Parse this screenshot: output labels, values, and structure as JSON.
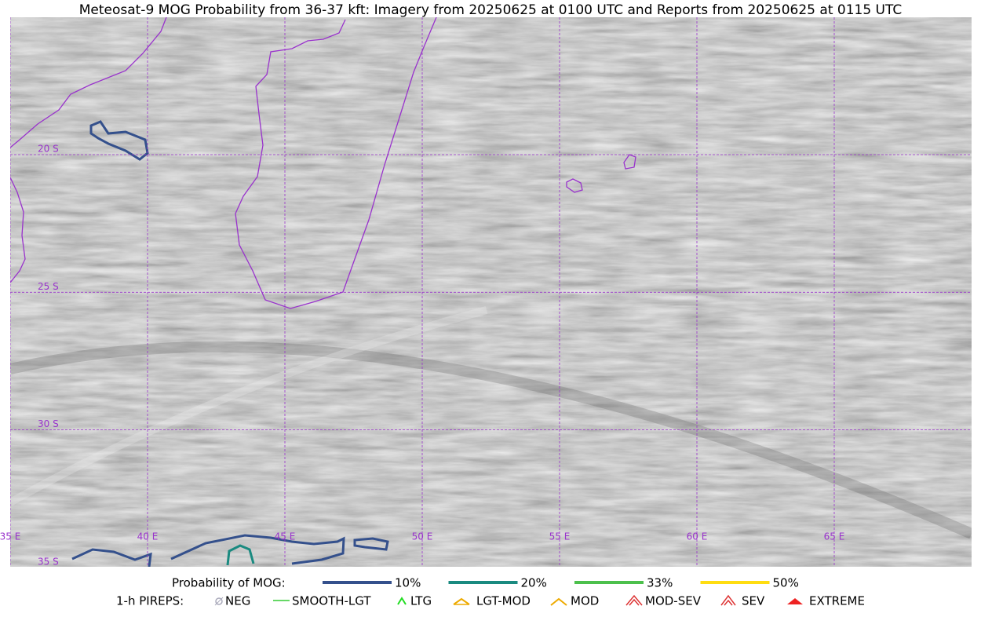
{
  "title": "Meteosat-9 MOG Probability from 36-37 kft: Imagery from 20250625 at 0100 UTC and Reports from 20250625 at 0115 UTC",
  "grid": {
    "latitudes": [
      "20 S",
      "25 S",
      "30 S",
      "35 S"
    ],
    "longitudes": [
      "35 E",
      "40 E",
      "45 E",
      "50 E",
      "55 E",
      "60 E",
      "65 E"
    ],
    "color": "#9933cc"
  },
  "legend": {
    "probability": {
      "title": "Probability of MOG:",
      "items": [
        {
          "label": "10%",
          "color": "#34508c"
        },
        {
          "label": "20%",
          "color": "#1a8a80"
        },
        {
          "label": "33%",
          "color": "#4cc04c"
        },
        {
          "label": "50%",
          "color": "#ffdd11"
        }
      ]
    },
    "pireps": {
      "title": "1-h PIREPS:",
      "items": [
        "NEG",
        "SMOOTH-LGT",
        "LTG",
        "LGT-MOD",
        "MOD",
        "MOD-SEV",
        "SEV",
        "EXTREME"
      ]
    }
  }
}
